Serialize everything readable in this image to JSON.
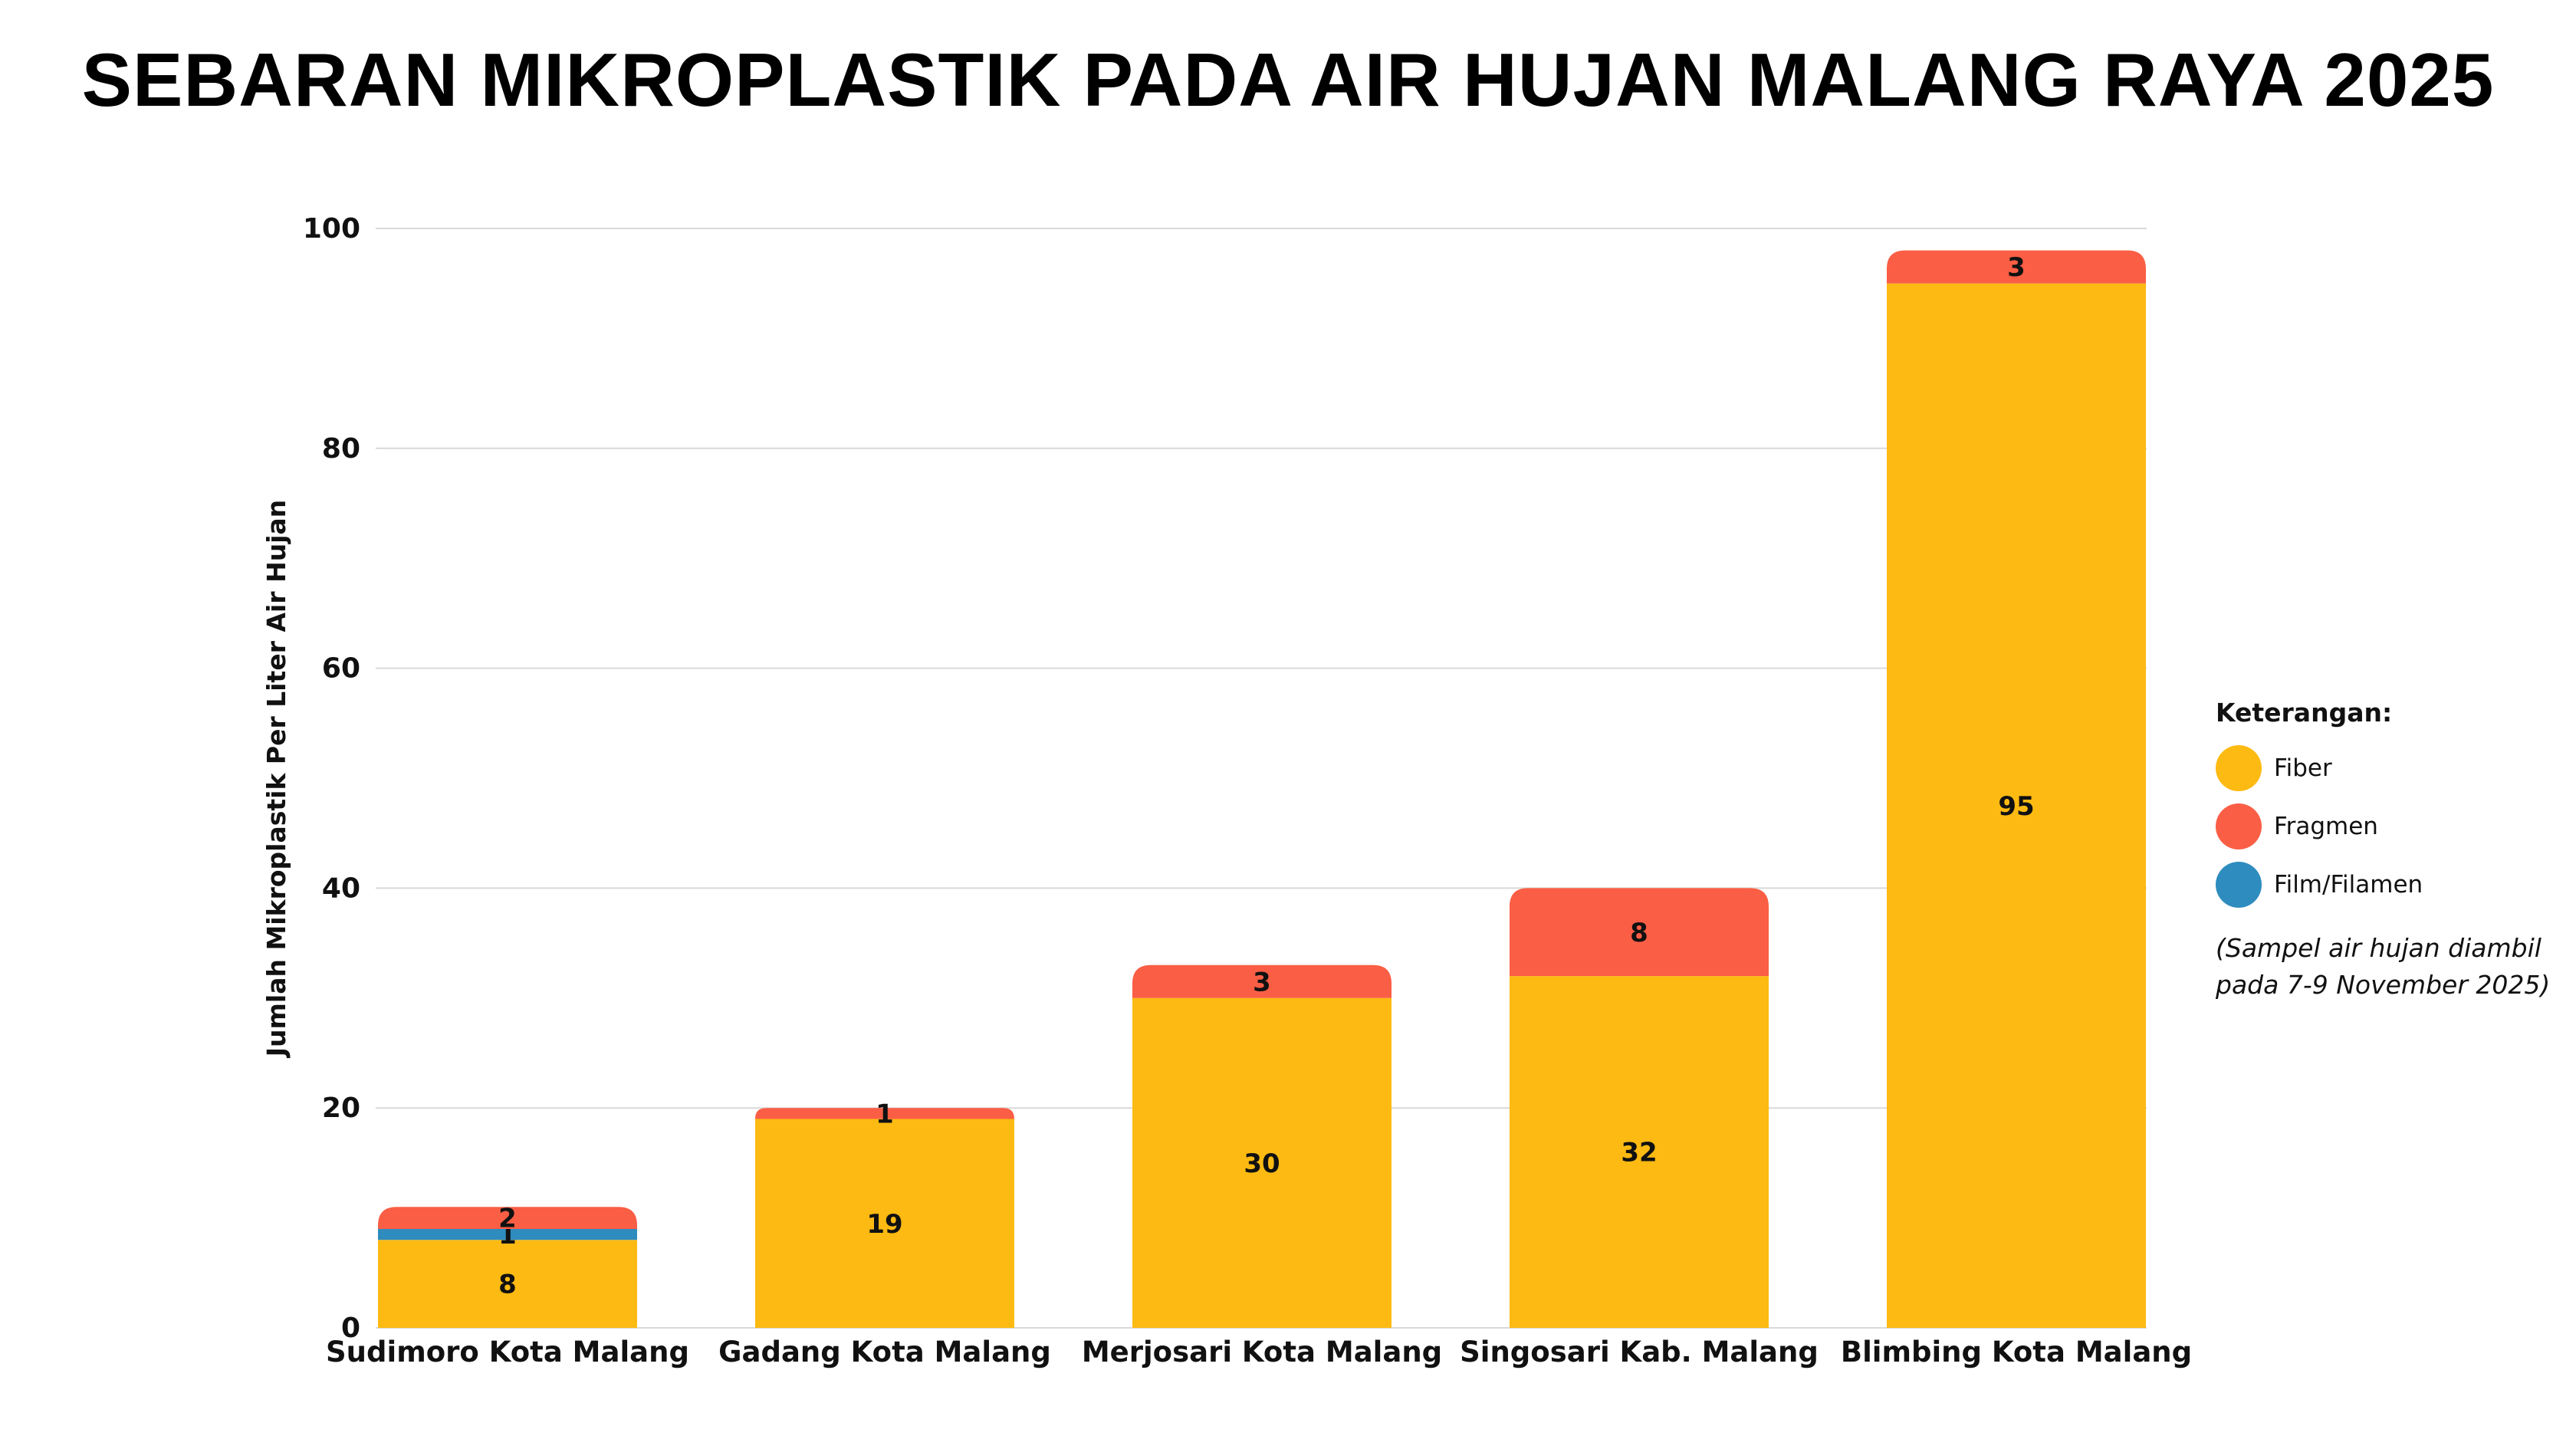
{
  "title": "SEBARAN MIKROPLASTIK PADA AIR HUJAN MALANG RAYA 2025",
  "chart_data": {
    "type": "bar",
    "stacked": true,
    "title": "SEBARAN MIKROPLASTIK PADA AIR HUJAN MALANG RAYA 2025",
    "xlabel": "",
    "ylabel": "Jumlah Mikroplastik Per Liter Air Hujan",
    "ylim": [
      0,
      100
    ],
    "yticks": [
      0,
      20,
      40,
      60,
      80,
      100
    ],
    "grid": true,
    "legend_position": "right",
    "categories": [
      "Sudimoro Kota Malang",
      "Gadang Kota Malang",
      "Merjosari Kota Malang",
      "Singosari Kab. Malang",
      "Blimbing Kota Malang"
    ],
    "series": [
      {
        "name": "Fiber",
        "color": "#FDBA12",
        "values": [
          8,
          19,
          30,
          32,
          95
        ]
      },
      {
        "name": "Film/Filamen",
        "color": "#2E8CBE",
        "values": [
          1,
          0,
          0,
          0,
          0
        ]
      },
      {
        "name": "Fragmen",
        "color": "#FA5E45",
        "values": [
          2,
          1,
          3,
          8,
          3
        ]
      }
    ]
  },
  "legend": {
    "title": "Keterangan:",
    "items": [
      {
        "label": "Fiber",
        "color": "#FDBA12"
      },
      {
        "label": "Fragmen",
        "color": "#FA5E45"
      },
      {
        "label": "Film/Filamen",
        "color": "#2E8CBE"
      }
    ]
  },
  "note": "(Sampel air hujan diambil pada 7-9 November 2025)"
}
